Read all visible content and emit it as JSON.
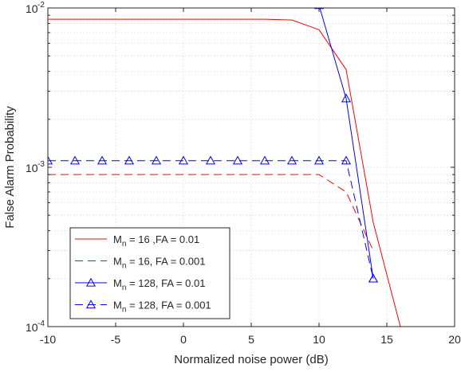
{
  "chart_data": {
    "type": "line",
    "title": "",
    "xlabel": "Normalized noise power (dB)",
    "ylabel": "False Alarm Probability",
    "xlim": [
      -10,
      20
    ],
    "ylim": [
      0.0001,
      0.01
    ],
    "yscale": "log",
    "grid": true,
    "legend_position": "bottom-left",
    "x_ticks": [
      -10,
      -5,
      0,
      5,
      10,
      15,
      20
    ],
    "x_tick_labels": [
      "-10",
      "-5",
      "0",
      "5",
      "10",
      "15",
      "20"
    ],
    "y_ticks": [
      0.0001,
      0.001,
      0.01
    ],
    "y_tick_labels": [
      {
        "base": "10",
        "exp": "-4"
      },
      {
        "base": "10",
        "exp": "-3"
      },
      {
        "base": "10",
        "exp": "-2"
      }
    ],
    "series": [
      {
        "legend": {
          "m": "M",
          "sub": "n",
          "rest": " = 16 ,FA = 0.01"
        },
        "color": "#ff0000",
        "dash": "solid",
        "marker": "none",
        "x": [
          -10,
          -8,
          -6,
          -4,
          -2,
          0,
          2,
          4,
          6,
          8,
          10,
          12,
          14,
          16
        ],
        "y": [
          0.0085,
          0.0085,
          0.0085,
          0.0085,
          0.0085,
          0.0085,
          0.0085,
          0.0085,
          0.0085,
          0.0084,
          0.0073,
          0.0041,
          0.00045,
          0.0001
        ]
      },
      {
        "legend": {
          "m": "M",
          "sub": "n",
          "rest": " = 16, FA = 0.001"
        },
        "color": "#ff0000",
        "dash": "dashed",
        "marker": "none",
        "x": [
          -10,
          -8,
          -6,
          -4,
          -2,
          0,
          2,
          4,
          6,
          8,
          10,
          12,
          14
        ],
        "y": [
          0.0009,
          0.0009,
          0.0009,
          0.0009,
          0.0009,
          0.0009,
          0.0009,
          0.0009,
          0.0009,
          0.0009,
          0.0009,
          0.0007,
          0.0003
        ]
      },
      {
        "legend": {
          "m": "M",
          "sub": "n",
          "rest": " = 128, FA = 0.01"
        },
        "color": "#0000ff",
        "dash": "solid",
        "marker": "triangle",
        "x": [
          -10,
          -8,
          -6,
          -4,
          -2,
          0,
          2,
          4,
          6,
          8,
          10,
          12,
          14
        ],
        "y": [
          0.0105,
          0.0105,
          0.0105,
          0.0105,
          0.0105,
          0.0105,
          0.0105,
          0.0105,
          0.0105,
          0.0105,
          0.0104,
          0.0027,
          0.0002
        ]
      },
      {
        "legend": {
          "m": "M",
          "sub": "n",
          "rest": " = 128, FA = 0.001"
        },
        "color": "#0000ff",
        "dash": "dashed",
        "marker": "triangle",
        "x": [
          -10,
          -8,
          -6,
          -4,
          -2,
          0,
          2,
          4,
          6,
          8,
          10,
          12,
          14
        ],
        "y": [
          0.0011,
          0.0011,
          0.0011,
          0.0011,
          0.0011,
          0.0011,
          0.0011,
          0.0011,
          0.0011,
          0.0011,
          0.0011,
          0.0011,
          0.0002
        ]
      }
    ]
  }
}
